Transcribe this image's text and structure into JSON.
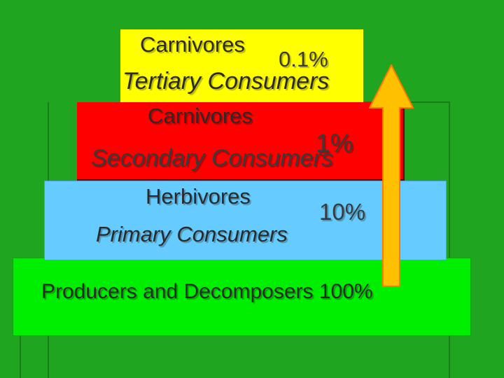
{
  "colors": {
    "background": "#1fa51f",
    "tertiary": "#ffff00",
    "secondary": "#ff0000",
    "primary": "#66ccff",
    "producers": "#00ee00",
    "arrow": "#ffc000",
    "arrow_outline": "#ff7a00"
  },
  "pyramid": {
    "tertiary": {
      "group": "Carnivores",
      "percent": "0.1%",
      "level": "Tertiary Consumers"
    },
    "secondary": {
      "group": "Carnivores",
      "percent": "1%",
      "level": "Secondary Consumers"
    },
    "primary": {
      "group": "Herbivores",
      "percent": "10%",
      "level": "Primary Consumers"
    },
    "producers": {
      "label": "Producers and Decomposers 100%"
    }
  },
  "icons": {
    "energy_arrow": "up-arrow-icon"
  }
}
